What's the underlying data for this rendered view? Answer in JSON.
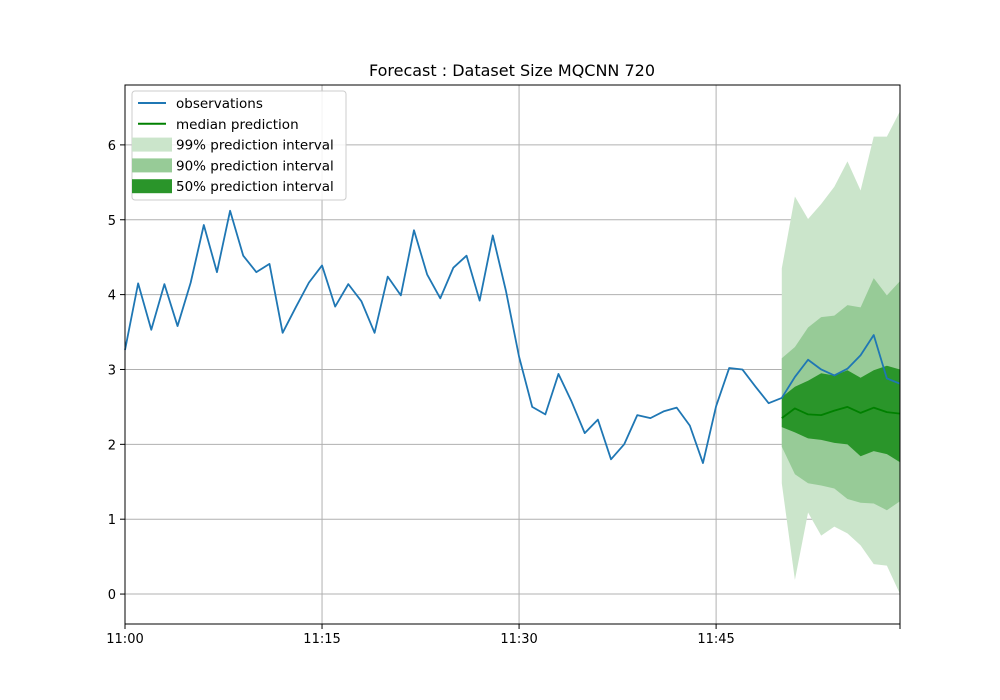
{
  "chart_data": {
    "type": "line",
    "title": "Forecast : Dataset Size MQCNN 720",
    "xlabel": "",
    "ylabel": "",
    "x_start": "11:00",
    "x_ticks": [
      "11:00",
      "11:15",
      "11:30",
      "11:45"
    ],
    "xlim": [
      "11:00",
      "11:59"
    ],
    "ylim": [
      -0.4,
      6.8
    ],
    "y_ticks": [
      "0",
      "1",
      "2",
      "3",
      "4",
      "5",
      "6"
    ],
    "grid": true,
    "legend_position": "top-left",
    "colors": {
      "observations": "#1f77b4",
      "median": "#008000",
      "band99": "#cbe5cb",
      "band90": "#97cb97",
      "band50": "#2a952a"
    },
    "series": [
      {
        "name": "observations",
        "time": [
          "11:00",
          "11:01",
          "11:02",
          "11:03",
          "11:04",
          "11:05",
          "11:06",
          "11:07",
          "11:08",
          "11:09",
          "11:10",
          "11:11",
          "11:12",
          "11:13",
          "11:14",
          "11:15",
          "11:16",
          "11:17",
          "11:18",
          "11:19",
          "11:20",
          "11:21",
          "11:22",
          "11:23",
          "11:24",
          "11:25",
          "11:26",
          "11:27",
          "11:28",
          "11:29",
          "11:30",
          "11:31",
          "11:32",
          "11:33",
          "11:34",
          "11:35",
          "11:36",
          "11:37",
          "11:38",
          "11:39",
          "11:40",
          "11:41",
          "11:42",
          "11:43",
          "11:44",
          "11:45",
          "11:46",
          "11:47",
          "11:48",
          "11:49",
          "11:50",
          "11:51",
          "11:52",
          "11:53",
          "11:54",
          "11:55",
          "11:56",
          "11:57",
          "11:58",
          "11:59"
        ],
        "values": [
          3.26,
          4.15,
          3.53,
          4.14,
          3.58,
          4.16,
          4.93,
          4.3,
          5.12,
          4.52,
          4.3,
          4.41,
          3.49,
          3.83,
          4.16,
          4.39,
          3.84,
          4.14,
          3.91,
          3.49,
          4.24,
          3.99,
          4.86,
          4.27,
          3.95,
          4.36,
          4.52,
          3.92,
          4.79,
          4.05,
          3.17,
          2.5,
          2.4,
          2.94,
          2.57,
          2.15,
          2.33,
          1.8,
          2.0,
          2.39,
          2.35,
          2.44,
          2.49,
          2.25,
          1.75,
          2.51,
          3.02,
          3.0,
          2.77,
          2.55,
          2.62,
          2.9,
          3.13,
          3.0,
          2.92,
          3.01,
          3.19,
          3.46,
          2.88,
          2.81
        ]
      },
      {
        "name": "median prediction",
        "time": [
          "11:50",
          "11:51",
          "11:52",
          "11:53",
          "11:54",
          "11:55",
          "11:56",
          "11:57",
          "11:58",
          "11:59"
        ],
        "values": [
          2.35,
          2.48,
          2.4,
          2.39,
          2.45,
          2.5,
          2.42,
          2.49,
          2.43,
          2.41
        ]
      }
    ],
    "intervals": [
      {
        "name": "99% prediction interval",
        "time": [
          "11:50",
          "11:51",
          "11:52",
          "11:53",
          "11:54",
          "11:55",
          "11:56",
          "11:57",
          "11:58",
          "11:59"
        ],
        "lower": [
          1.48,
          0.19,
          1.09,
          0.78,
          0.9,
          0.81,
          0.65,
          0.4,
          0.38,
          0.0
        ],
        "upper": [
          4.35,
          5.31,
          5.01,
          5.21,
          5.44,
          5.78,
          5.39,
          6.11,
          6.11,
          6.45
        ]
      },
      {
        "name": "90% prediction interval",
        "time": [
          "11:50",
          "11:51",
          "11:52",
          "11:53",
          "11:54",
          "11:55",
          "11:56",
          "11:57",
          "11:58",
          "11:59"
        ],
        "lower": [
          1.97,
          1.6,
          1.48,
          1.45,
          1.41,
          1.27,
          1.22,
          1.21,
          1.12,
          1.24
        ],
        "upper": [
          3.15,
          3.3,
          3.56,
          3.7,
          3.72,
          3.86,
          3.83,
          4.22,
          3.99,
          4.18
        ]
      },
      {
        "name": "50% prediction interval",
        "time": [
          "11:50",
          "11:51",
          "11:52",
          "11:53",
          "11:54",
          "11:55",
          "11:56",
          "11:57",
          "11:58",
          "11:59"
        ],
        "lower": [
          2.23,
          2.16,
          2.08,
          2.06,
          2.02,
          2.0,
          1.84,
          1.91,
          1.87,
          1.76
        ],
        "upper": [
          2.63,
          2.77,
          2.85,
          2.95,
          2.92,
          2.99,
          2.89,
          2.99,
          3.05,
          3.0
        ]
      }
    ],
    "legend": [
      {
        "label": "observations",
        "kind": "line",
        "color_key": "observations"
      },
      {
        "label": "median prediction",
        "kind": "line",
        "color_key": "median"
      },
      {
        "label": "99% prediction interval",
        "kind": "patch",
        "color_key": "band99"
      },
      {
        "label": "90% prediction interval",
        "kind": "patch",
        "color_key": "band90"
      },
      {
        "label": "50% prediction interval",
        "kind": "patch",
        "color_key": "band50"
      }
    ]
  }
}
